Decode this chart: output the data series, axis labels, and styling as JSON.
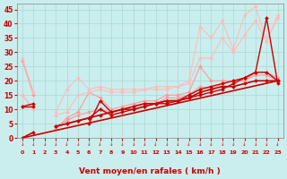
{
  "xlabel": "Vent moyen/en rafales ( km/h )",
  "xlim": [
    -0.5,
    23.5
  ],
  "ylim": [
    0,
    47
  ],
  "yticks": [
    0,
    5,
    10,
    15,
    20,
    25,
    30,
    35,
    40,
    45
  ],
  "xticks": [
    0,
    1,
    2,
    3,
    4,
    5,
    6,
    7,
    8,
    9,
    10,
    11,
    12,
    13,
    14,
    15,
    16,
    17,
    18,
    19,
    20,
    21,
    22,
    23
  ],
  "bg_color": "#caeeed",
  "grid_color": "#aad8d6",
  "lines": [
    {
      "x": [
        0,
        1,
        2,
        3,
        4,
        5,
        6,
        7,
        8,
        9,
        10,
        11,
        12,
        13,
        14,
        15,
        16,
        17,
        18,
        19,
        20,
        21,
        22,
        23
      ],
      "y": [
        27,
        15,
        null,
        3,
        7,
        9,
        16,
        14,
        10,
        11,
        12,
        13,
        13,
        15,
        15,
        16,
        25,
        20,
        20,
        20,
        20,
        23,
        23,
        21
      ],
      "color": "#ff9999",
      "lw": 0.8,
      "marker": "D",
      "ms": 2.0
    },
    {
      "x": [
        0,
        1,
        2,
        3,
        4,
        5,
        6,
        7,
        8,
        9,
        10,
        11,
        12,
        13,
        14,
        15,
        16,
        17,
        18,
        19,
        20,
        21,
        22,
        23
      ],
      "y": [
        15,
        10,
        null,
        4,
        6,
        8,
        9,
        10,
        9,
        10,
        11,
        12,
        12,
        14,
        14,
        15,
        18,
        17,
        19,
        20,
        20,
        22,
        22,
        20
      ],
      "color": "#ff9999",
      "lw": 0.8,
      "marker": "D",
      "ms": 2.0
    },
    {
      "x": [
        0,
        1,
        2,
        3,
        4,
        5,
        6,
        7,
        8,
        9,
        10,
        11,
        12,
        13,
        14,
        15,
        16,
        17,
        18,
        19,
        20,
        21,
        22,
        23
      ],
      "y": [
        28,
        16,
        null,
        9,
        17,
        21,
        17,
        18,
        17,
        17,
        17,
        17,
        18,
        18,
        18,
        20,
        39,
        35,
        41,
        31,
        43,
        46,
        34,
        43
      ],
      "color": "#ffbbbb",
      "lw": 0.8,
      "marker": "D",
      "ms": 2.0
    },
    {
      "x": [
        0,
        1,
        2,
        3,
        4,
        5,
        6,
        7,
        8,
        9,
        10,
        11,
        12,
        13,
        14,
        15,
        16,
        17,
        18,
        19,
        20,
        21,
        22,
        23
      ],
      "y": [
        15,
        10,
        null,
        8,
        9,
        15,
        16,
        17,
        16,
        16,
        16,
        17,
        17,
        17,
        18,
        19,
        28,
        28,
        35,
        30,
        36,
        41,
        34,
        42
      ],
      "color": "#ffbbbb",
      "lw": 0.8,
      "marker": "D",
      "ms": 2.0
    },
    {
      "x": [
        0,
        1,
        2,
        3,
        4,
        5,
        6,
        7,
        8,
        9,
        10,
        11,
        12,
        13,
        14,
        15,
        16,
        17,
        18,
        19,
        20,
        21,
        22,
        23
      ],
      "y": [
        11,
        12,
        null,
        3,
        null,
        null,
        5,
        13,
        9,
        10,
        10,
        11,
        12,
        12,
        13,
        14,
        15,
        16,
        17,
        19,
        21,
        23,
        42,
        19
      ],
      "color": "#cc0000",
      "lw": 1.0,
      "marker": "D",
      "ms": 2.0
    },
    {
      "x": [
        0,
        1,
        2,
        3,
        4,
        5,
        6,
        7,
        8,
        9,
        10,
        11,
        12,
        13,
        14,
        15,
        16,
        17,
        18,
        19,
        20,
        21,
        22,
        23
      ],
      "y": [
        11,
        11,
        null,
        4,
        5,
        6,
        7,
        10,
        8,
        9,
        10,
        11,
        12,
        13,
        13,
        15,
        17,
        18,
        19,
        20,
        21,
        23,
        23,
        20
      ],
      "color": "#cc0000",
      "lw": 1.0,
      "marker": "D",
      "ms": 2.0
    },
    {
      "x": [
        0,
        1,
        2,
        3,
        4,
        5,
        6,
        7,
        8,
        9,
        10,
        11,
        12,
        13,
        14,
        15,
        16,
        17,
        18,
        19,
        20,
        21,
        22,
        23
      ],
      "y": [
        0,
        2,
        null,
        4,
        5,
        6,
        7,
        8,
        9,
        10,
        11,
        12,
        12,
        13,
        13,
        14,
        16,
        17,
        18,
        18,
        19,
        20,
        20,
        20
      ],
      "color": "#cc0000",
      "lw": 1.2,
      "marker": "D",
      "ms": 2.0
    },
    {
      "x": [
        0,
        23
      ],
      "y": [
        0,
        20
      ],
      "color": "#cc0000",
      "lw": 1.2,
      "marker": null,
      "ms": 0
    }
  ]
}
